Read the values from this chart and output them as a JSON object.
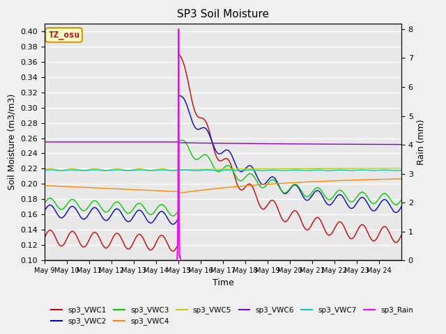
{
  "title": "SP3 Soil Moisture",
  "ylabel_left": "Soil Moisture (m3/m3)",
  "ylabel_right": "Rain (mm)",
  "xlabel": "Time",
  "ylim_left": [
    0.1,
    0.41
  ],
  "ylim_right": [
    0.0,
    8.2
  ],
  "yticks_left": [
    0.1,
    0.12,
    0.14,
    0.16,
    0.18,
    0.2,
    0.22,
    0.24,
    0.26,
    0.28,
    0.3,
    0.32,
    0.34,
    0.36,
    0.38,
    0.4
  ],
  "yticks_right": [
    0.0,
    1.0,
    2.0,
    3.0,
    4.0,
    5.0,
    6.0,
    7.0,
    8.0
  ],
  "annotation_text": "TZ_osu",
  "annotation_color": "#cc0000",
  "annotation_bg": "#ffffcc",
  "annotation_border": "#cc9900",
  "legend_entries": [
    "sp3_VWC1",
    "sp3_VWC2",
    "sp3_VWC3",
    "sp3_VWC4",
    "sp3_VWC5",
    "sp3_VWC6",
    "sp3_VWC7",
    "sp3_Rain"
  ],
  "line_colors": [
    "#cc0000",
    "#0000cc",
    "#00cc00",
    "#ff8800",
    "#cccc00",
    "#8800cc",
    "#00cccc",
    "#ff00ff"
  ],
  "background_color": "#e8e8e8",
  "grid_color": "#ffffff",
  "x_tick_positions": [
    0,
    1,
    2,
    3,
    4,
    5,
    6,
    7,
    8,
    9,
    10,
    11,
    12,
    13,
    14,
    15
  ],
  "x_tick_labels": [
    "May 9",
    "May 10",
    "May 11",
    "May 12",
    "May 13",
    "May 14",
    "May 15",
    "May 16",
    "May 17",
    "May 18",
    "May 19",
    "May 20",
    "May 21",
    "May 22",
    "May 23",
    "May 24"
  ]
}
